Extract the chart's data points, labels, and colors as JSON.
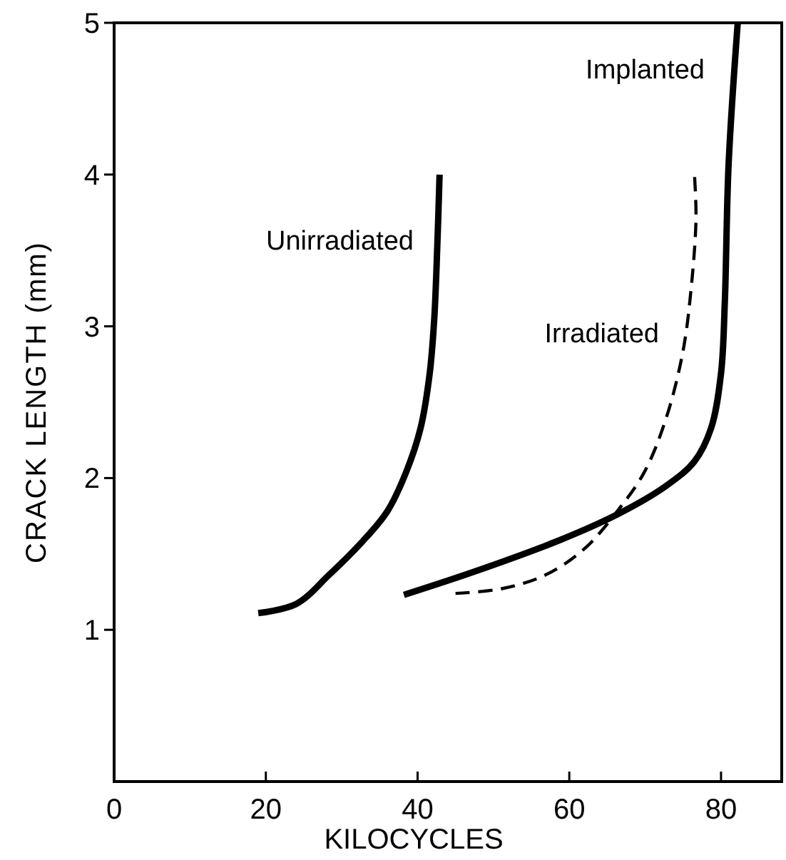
{
  "chart_data": {
    "type": "line",
    "xlabel": "KILOCYCLES",
    "ylabel": "CRACK LENGTH (mm)",
    "xlim": [
      0,
      88
    ],
    "ylim": [
      0,
      5
    ],
    "xticks": [
      0,
      20,
      40,
      60,
      80
    ],
    "yticks": [
      1,
      2,
      3,
      4,
      5
    ],
    "grid": false,
    "marker": "none",
    "series": [
      {
        "name": "Unirradiated",
        "color": "#000000",
        "line_style": "solid",
        "x": [
          19,
          24,
          28.3,
          32.7,
          36,
          38.5,
          40.4,
          41.6,
          42.2,
          42.6,
          42.9
        ],
        "values": [
          1.11,
          1.17,
          1.36,
          1.58,
          1.78,
          2.04,
          2.33,
          2.69,
          3.05,
          3.53,
          4.0
        ]
      },
      {
        "name": "Irradiated",
        "color": "#000000",
        "line_style": "dashed",
        "x": [
          45,
          51,
          56.8,
          61.9,
          66.3,
          69.9,
          72.8,
          75,
          76.1,
          76.7,
          76.5
        ],
        "values": [
          1.24,
          1.27,
          1.36,
          1.53,
          1.78,
          2.04,
          2.4,
          2.84,
          3.27,
          3.71,
          4.0
        ]
      },
      {
        "name": "Implanted",
        "color": "#000000",
        "line_style": "solid",
        "x": [
          38.2,
          47.3,
          58.2,
          66.3,
          72.8,
          76.5,
          78.7,
          80,
          80.5,
          81,
          82.2
        ],
        "values": [
          1.23,
          1.38,
          1.58,
          1.76,
          1.95,
          2.11,
          2.33,
          2.69,
          3.16,
          4.07,
          5.0
        ]
      }
    ]
  }
}
